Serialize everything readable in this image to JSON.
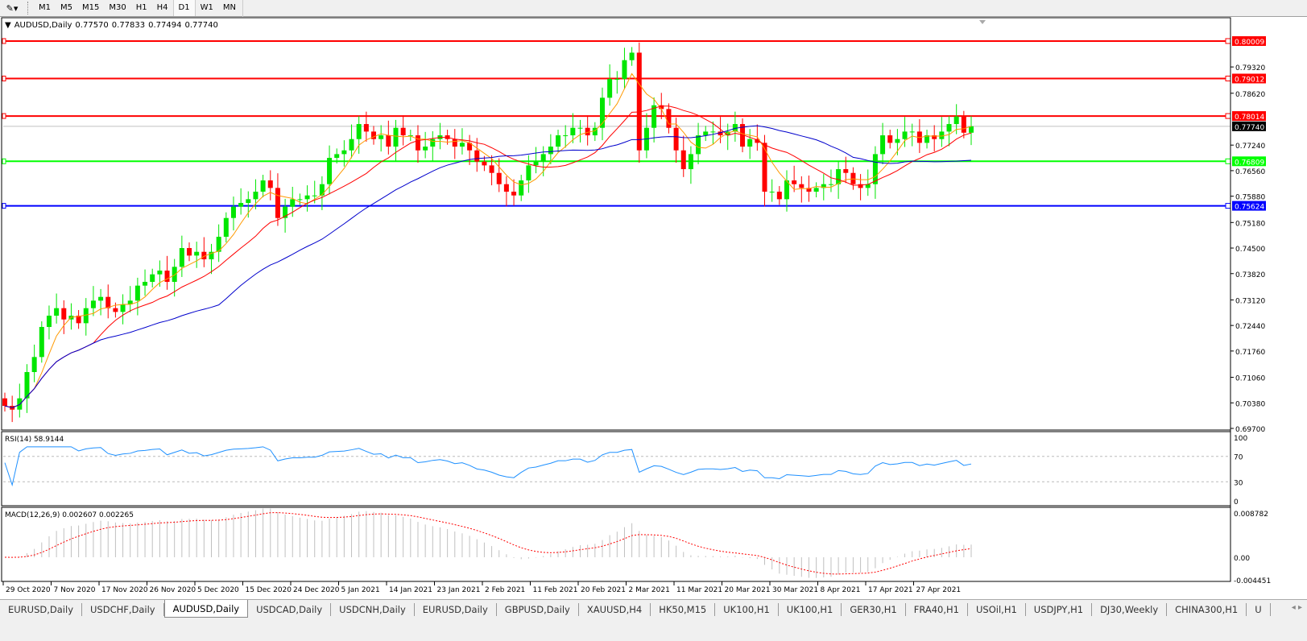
{
  "toolbar": {
    "tool_icon": "line-tools-icon",
    "timeframes": [
      "M1",
      "M5",
      "M15",
      "M30",
      "H1",
      "H4",
      "D1",
      "W1",
      "MN"
    ],
    "active": "D1"
  },
  "legend": {
    "symbol": "AUDUSD,Daily",
    "open": "0.77570",
    "high": "0.77833",
    "low": "0.77494",
    "close": "0.77740"
  },
  "rsi": {
    "label": "RSI(14) 58.9144",
    "scale": [
      "100",
      "70",
      "30",
      "0"
    ]
  },
  "macd": {
    "label": "MACD(12,26,9) 0.002607 0.002265",
    "scale": [
      "0.008782",
      "0.00",
      "-0.004451"
    ]
  },
  "colors": {
    "bull": "#00e600",
    "bear": "#ff0000",
    "ma_fast": "#ff9900",
    "ma_mid": "#ff0000",
    "ma_slow": "#0000cc",
    "rsi": "#1e90ff",
    "macd_signal": "#ff0000"
  },
  "price_axis": [
    "0.79320",
    "0.78620",
    "0.77240",
    "0.76560",
    "0.75880",
    "0.75180",
    "0.74500",
    "0.73820",
    "0.73120",
    "0.72440",
    "0.71760",
    "0.71060",
    "0.70380",
    "0.69700"
  ],
  "levels": [
    {
      "price": "0.80009",
      "color": "#ff0000"
    },
    {
      "price": "0.79012",
      "color": "#ff0000"
    },
    {
      "price": "0.78014",
      "color": "#ff0000"
    },
    {
      "price": "0.76809",
      "color": "#00ff00"
    },
    {
      "price": "0.75624",
      "color": "#0000ff"
    }
  ],
  "current_price": "0.77740",
  "dates": [
    "29 Oct 2020",
    "7 Nov 2020",
    "17 Nov 2020",
    "26 Nov 2020",
    "5 Dec 2020",
    "15 Dec 2020",
    "24 Dec 2020",
    "5 Jan 2021",
    "14 Jan 2021",
    "23 Jan 2021",
    "2 Feb 2021",
    "11 Feb 2021",
    "20 Feb 2021",
    "2 Mar 2021",
    "11 Mar 2021",
    "20 Mar 2021",
    "30 Mar 2021",
    "8 Apr 2021",
    "17 Apr 2021",
    "27 Apr 2021"
  ],
  "chart_data": {
    "type": "candlestick",
    "symbol": "AUDUSD",
    "timeframe": "Daily",
    "ylim": [
      0.697,
      0.80009
    ],
    "closes": [
      0.703,
      0.702,
      0.705,
      0.712,
      0.716,
      0.724,
      0.727,
      0.729,
      0.726,
      0.727,
      0.725,
      0.729,
      0.731,
      0.732,
      0.729,
      0.728,
      0.73,
      0.731,
      0.735,
      0.736,
      0.738,
      0.739,
      0.736,
      0.74,
      0.745,
      0.743,
      0.744,
      0.742,
      0.744,
      0.748,
      0.753,
      0.756,
      0.757,
      0.758,
      0.76,
      0.763,
      0.761,
      0.753,
      0.756,
      0.758,
      0.758,
      0.759,
      0.759,
      0.762,
      0.769,
      0.77,
      0.771,
      0.774,
      0.778,
      0.776,
      0.774,
      0.775,
      0.772,
      0.777,
      0.775,
      0.775,
      0.771,
      0.772,
      0.774,
      0.775,
      0.774,
      0.772,
      0.773,
      0.771,
      0.768,
      0.767,
      0.765,
      0.762,
      0.76,
      0.759,
      0.763,
      0.767,
      0.768,
      0.77,
      0.772,
      0.775,
      0.775,
      0.777,
      0.777,
      0.775,
      0.777,
      0.785,
      0.79,
      0.79,
      0.795,
      0.797,
      0.771,
      0.777,
      0.783,
      0.782,
      0.777,
      0.771,
      0.766,
      0.77,
      0.775,
      0.776,
      0.776,
      0.775,
      0.776,
      0.778,
      0.772,
      0.774,
      0.773,
      0.76,
      0.76,
      0.758,
      0.763,
      0.762,
      0.761,
      0.76,
      0.761,
      0.762,
      0.762,
      0.766,
      0.765,
      0.762,
      0.761,
      0.762,
      0.77,
      0.775,
      0.773,
      0.774,
      0.776,
      0.776,
      0.773,
      0.775,
      0.774,
      0.776,
      0.778,
      0.78,
      0.7757,
      0.7774
    ]
  },
  "tabs": {
    "items": [
      "EURUSD,Daily",
      "USDCHF,Daily",
      "AUDUSD,Daily",
      "USDCAD,Daily",
      "USDCNH,Daily",
      "EURUSD,Daily",
      "GBPUSD,Daily",
      "XAUUSD,H4",
      "HK50,M15",
      "UK100,H1",
      "UK100,H1",
      "GER30,H1",
      "FRA40,H1",
      "USOil,H1",
      "USDJPY,H1",
      "DJ30,Weekly",
      "CHINA300,H1",
      "U"
    ],
    "active": 2
  }
}
